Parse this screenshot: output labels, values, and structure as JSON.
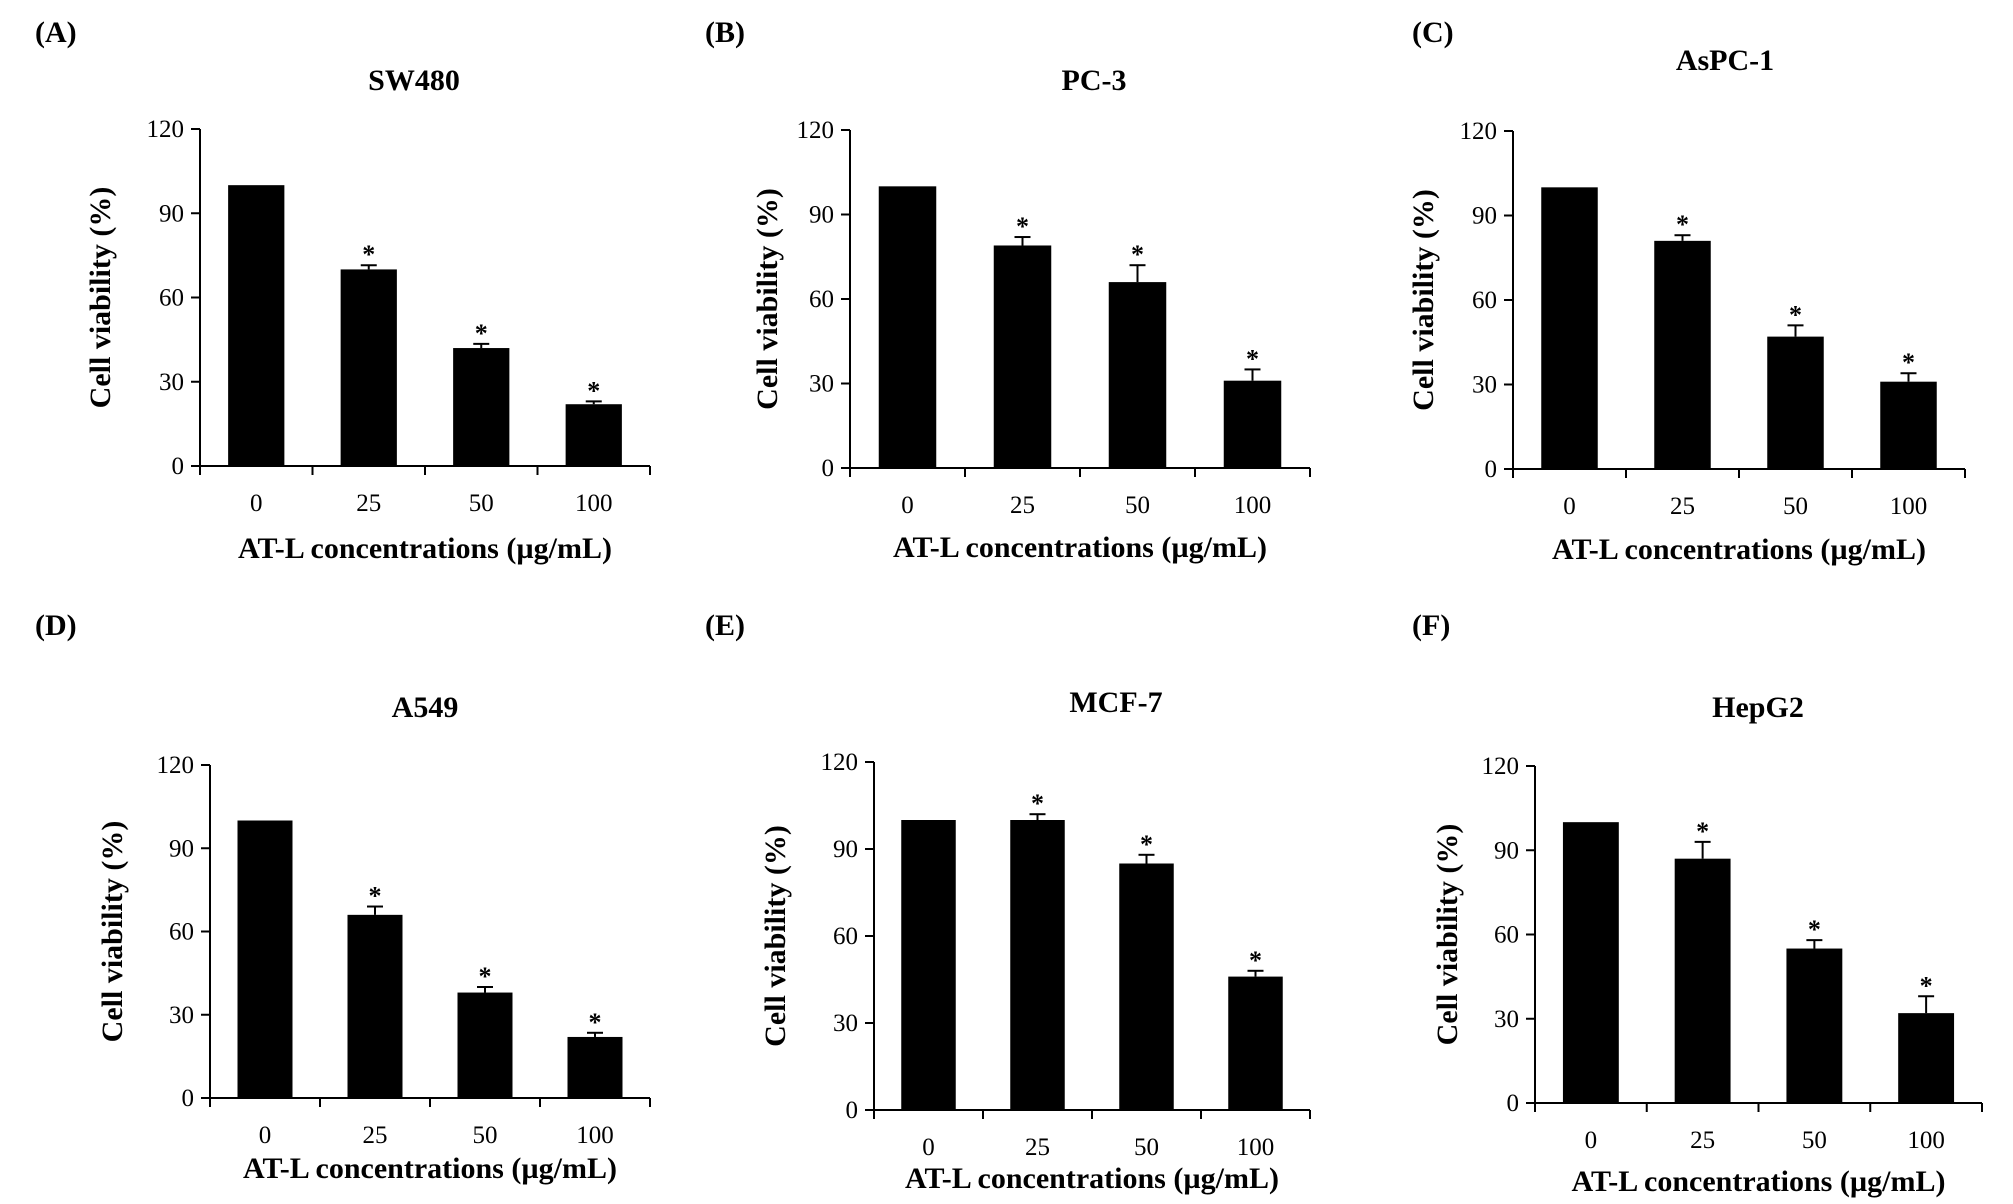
{
  "chart_data": [
    {
      "panel": "(A)",
      "title": "SW480",
      "type": "bar",
      "categories": [
        "0",
        "25",
        "50",
        "100"
      ],
      "values": [
        100,
        70,
        42,
        22
      ],
      "errors": [
        0,
        1.5,
        1.5,
        1
      ],
      "significant": [
        false,
        true,
        true,
        true
      ],
      "significance_mark": "*",
      "xlabel": "AT-L concentrations  (µg/mL)",
      "ylabel": "Cell viability  (%)",
      "ylim": [
        0,
        120
      ],
      "yticks": [
        "0",
        "30",
        "60",
        "90",
        "120"
      ]
    },
    {
      "panel": "(B)",
      "title": "PC-3",
      "type": "bar",
      "categories": [
        "0",
        "25",
        "50",
        "100"
      ],
      "values": [
        100,
        79,
        66,
        31
      ],
      "errors": [
        0,
        3,
        6,
        4
      ],
      "significant": [
        false,
        true,
        true,
        true
      ],
      "significance_mark": "*",
      "xlabel": "AT-L concentrations  (µg/mL)",
      "ylabel": "Cell viability  (%)",
      "ylim": [
        0,
        120
      ],
      "yticks": [
        "0",
        "30",
        "60",
        "90",
        "120"
      ]
    },
    {
      "panel": "(C)",
      "title": "AsPC-1",
      "type": "bar",
      "categories": [
        "0",
        "25",
        "50",
        "100"
      ],
      "values": [
        100,
        81,
        47,
        31
      ],
      "errors": [
        0,
        2,
        4,
        3
      ],
      "significant": [
        false,
        true,
        true,
        true
      ],
      "significance_mark": "*",
      "xlabel": "AT-L concentrations  (µg/mL)",
      "ylabel": "Cell viability  (%)",
      "ylim": [
        0,
        120
      ],
      "yticks": [
        "0",
        "30",
        "60",
        "90",
        "120"
      ]
    },
    {
      "panel": "(D)",
      "title": "A549",
      "type": "bar",
      "categories": [
        "0",
        "25",
        "50",
        "100"
      ],
      "values": [
        100,
        66,
        38,
        22
      ],
      "errors": [
        0,
        3,
        2,
        1.5
      ],
      "significant": [
        false,
        true,
        true,
        true
      ],
      "significance_mark": "*",
      "xlabel": "AT-L concentrations  (µg/mL)",
      "ylabel": "Cell viability  (%)",
      "ylim": [
        0,
        120
      ],
      "yticks": [
        "0",
        "30",
        "60",
        "90",
        "120"
      ]
    },
    {
      "panel": "(E)",
      "title": "MCF-7",
      "type": "bar",
      "categories": [
        "0",
        "25",
        "50",
        "100"
      ],
      "values": [
        100,
        100,
        85,
        46
      ],
      "errors": [
        0,
        2,
        3,
        2
      ],
      "significant": [
        false,
        true,
        true,
        true
      ],
      "significance_mark": "*",
      "xlabel": "AT-L concentrations  (µg/mL)",
      "ylabel": "Cell viability  (%)",
      "ylim": [
        0,
        120
      ],
      "yticks": [
        "0",
        "30",
        "60",
        "90",
        "120"
      ]
    },
    {
      "panel": "(F)",
      "title": "HepG2",
      "type": "bar",
      "categories": [
        "0",
        "25",
        "50",
        "100"
      ],
      "values": [
        100,
        87,
        55,
        32
      ],
      "errors": [
        0,
        6,
        3,
        6
      ],
      "significant": [
        false,
        true,
        true,
        true
      ],
      "significance_mark": "*",
      "xlabel": "AT-L concentrations  (µg/mL)",
      "ylabel": "Cell viability  (%)",
      "ylim": [
        0,
        120
      ],
      "yticks": [
        "0",
        "30",
        "60",
        "90",
        "120"
      ]
    }
  ]
}
